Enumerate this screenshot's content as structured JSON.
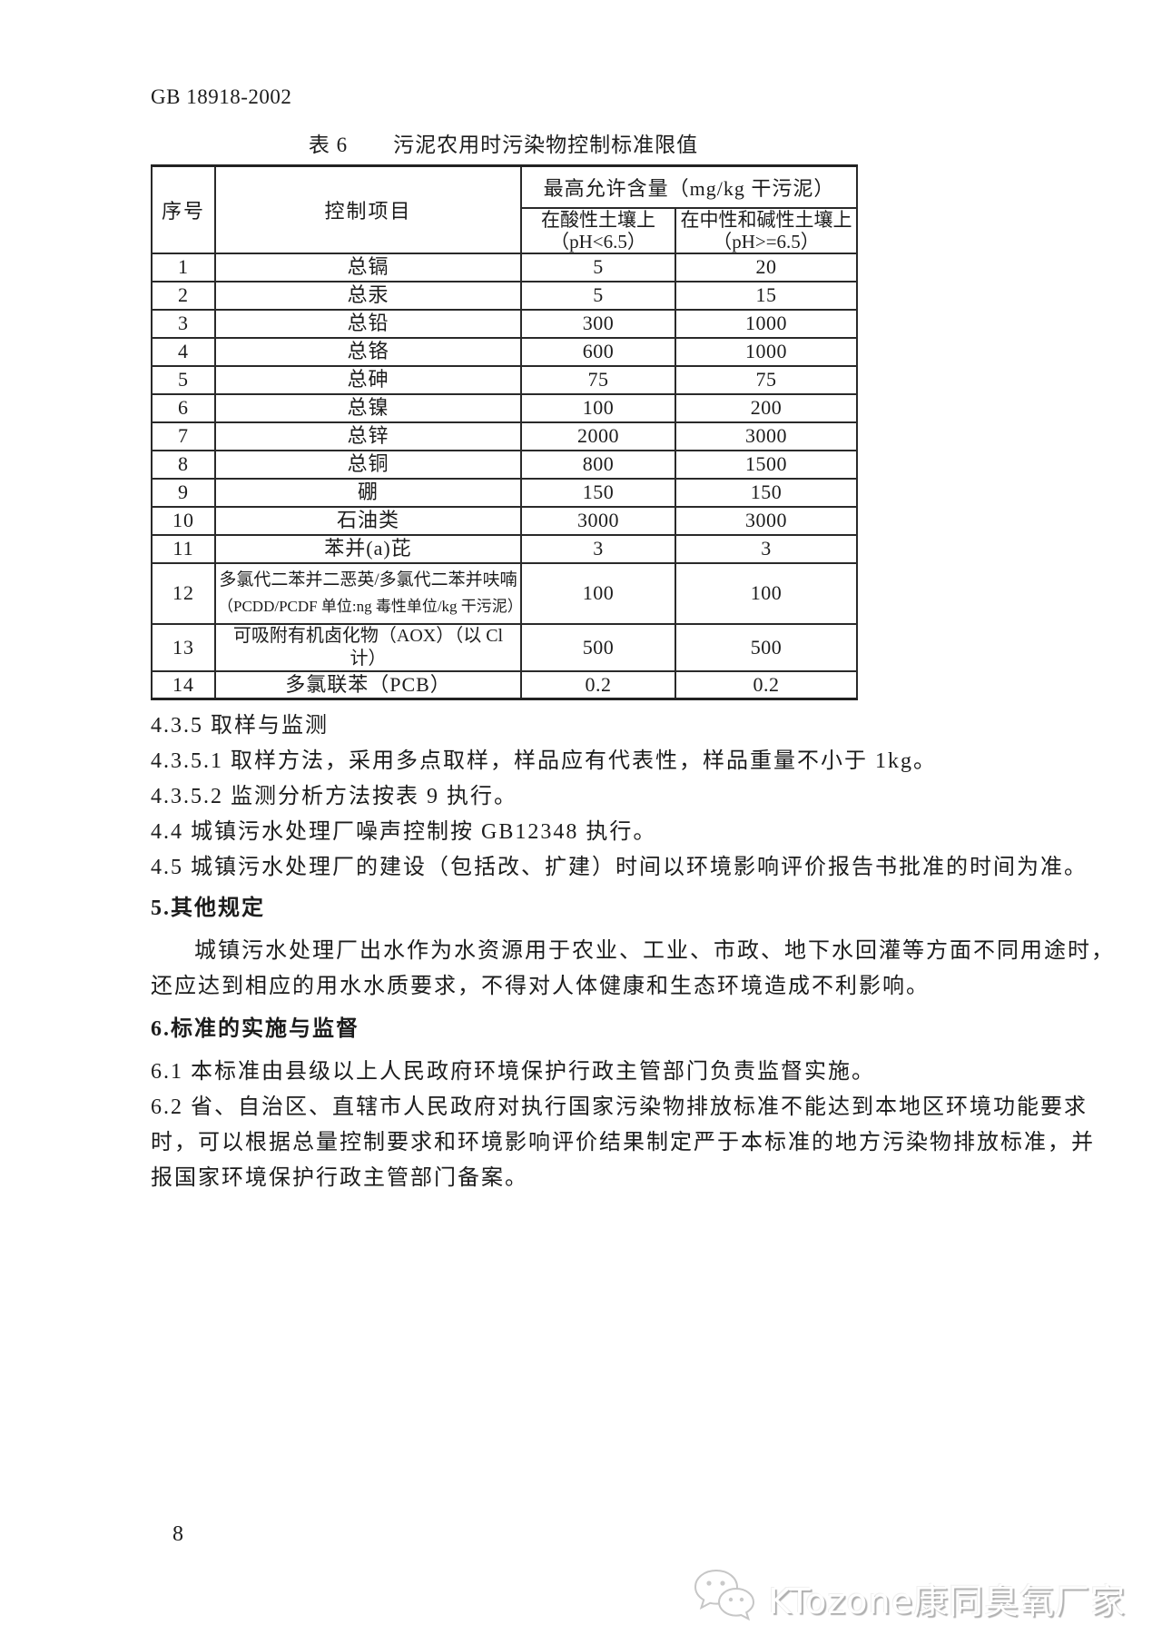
{
  "header": {
    "doc_code": "GB 18918-2002"
  },
  "table": {
    "caption_label": "表 6",
    "caption_title": "污泥农用时污染物控制标准限值",
    "header": {
      "col_index": "序号",
      "col_item": "控制项目",
      "col_group": "最高允许含量（mg/kg 干污泥）",
      "col_acid_line1": "在酸性土壤上",
      "col_acid_line2": "（pH<6.5）",
      "col_neutral_line1": "在中性和碱性土壤上",
      "col_neutral_line2": "（pH>=6.5）"
    },
    "rows": [
      {
        "no": "1",
        "item": "总镉",
        "acid": "5",
        "neutral": "20"
      },
      {
        "no": "2",
        "item": "总汞",
        "acid": "5",
        "neutral": "15"
      },
      {
        "no": "3",
        "item": "总铅",
        "acid": "300",
        "neutral": "1000"
      },
      {
        "no": "4",
        "item": "总铬",
        "acid": "600",
        "neutral": "1000"
      },
      {
        "no": "5",
        "item": "总砷",
        "acid": "75",
        "neutral": "75"
      },
      {
        "no": "6",
        "item": "总镍",
        "acid": "100",
        "neutral": "200"
      },
      {
        "no": "7",
        "item": "总锌",
        "acid": "2000",
        "neutral": "3000"
      },
      {
        "no": "8",
        "item": "总铜",
        "acid": "800",
        "neutral": "1500"
      },
      {
        "no": "9",
        "item": "硼",
        "acid": "150",
        "neutral": "150"
      },
      {
        "no": "10",
        "item": "石油类",
        "acid": "3000",
        "neutral": "3000"
      },
      {
        "no": "11",
        "item": "苯并(a)芘",
        "acid": "3",
        "neutral": "3"
      },
      {
        "no": "12",
        "item": "多氯代二苯并二恶英/多氯代二苯并呋喃",
        "item_note": "（PCDD/PCDF 单位:ng 毒性单位/kg 干污泥）",
        "acid": "100",
        "neutral": "100"
      },
      {
        "no": "13",
        "item": "可吸附有机卤化物（AOX）（以 Cl 计）",
        "acid": "500",
        "neutral": "500"
      },
      {
        "no": "14",
        "item": "多氯联苯（PCB）",
        "acid": "0.2",
        "neutral": "0.2"
      }
    ]
  },
  "clauses": {
    "s435": "4.3.5 取样与监测",
    "s4351": "4.3.5.1 取样方法，采用多点取样，样品应有代表性，样品重量不小于 1kg。",
    "s4352": "4.3.5.2 监测分析方法按表 9 执行。",
    "s44": "4.4 城镇污水处理厂噪声控制按 GB12348 执行。",
    "s45": "4.5 城镇污水处理厂的建设（包括改、扩建）时间以环境影响评价报告书批准的时间为准。"
  },
  "section5": {
    "heading": "5.其他规定",
    "para_line1": "城镇污水处理厂出水作为水资源用于农业、工业、市政、地下水回灌等方面不同用途时，",
    "para_line2": "还应达到相应的用水水质要求，不得对人体健康和生态环境造成不利影响。"
  },
  "section6": {
    "heading": "6.标准的实施与监督",
    "item61": "6.1 本标准由县级以上人民政府环境保护行政主管部门负责监督实施。",
    "item62_line1": "6.2 省、自治区、直辖市人民政府对执行国家污染物排放标准不能达到本地区环境功能要求",
    "item62_line2": "时，可以根据总量控制要求和环境影响评价结果制定严于本标准的地方污染物排放标准，并",
    "item62_line3": "报国家环境保护行政主管部门备案。"
  },
  "footer": {
    "page_number": "8",
    "watermark_text": "KTozone康同臭氧厂家",
    "watermark_icon": "wechat-icon"
  }
}
